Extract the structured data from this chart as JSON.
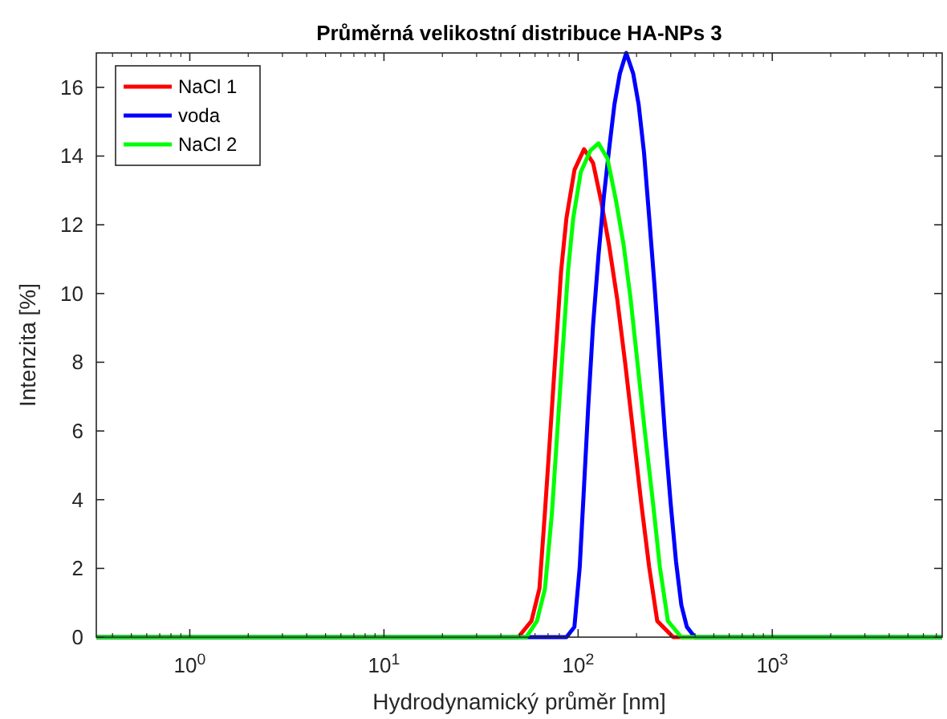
{
  "chart_data": {
    "type": "line",
    "title": "Průměrná velikostní distribuce HA-NPs 3",
    "xlabel": "Hydrodynamický průměr [nm]",
    "ylabel": "Intenzita [%]",
    "log": "x",
    "xlim": [
      0.33,
      7500
    ],
    "xticks": [
      {
        "value": 1,
        "label": "10$^{0}$"
      },
      {
        "value": 10,
        "label": "10$^{1}$"
      },
      {
        "value": 100,
        "label": "10$^{2}$"
      },
      {
        "value": 1000,
        "label": "10$^{3}$"
      }
    ],
    "ylim": [
      0,
      17
    ],
    "yticks": [
      0,
      2,
      4,
      6,
      8,
      10,
      12,
      14,
      16
    ],
    "grid": false,
    "legend": "top left",
    "marker": "none",
    "line_style": "solid",
    "series": [
      {
        "name": "NaCl 1",
        "color": "#ff0000",
        "x": [
          0.33,
          49.2,
          57.5,
          63.2,
          67.4,
          71.9,
          76.6,
          81.7,
          87.1,
          95.8,
          107.3,
          119.4,
          131.3,
          144.4,
          158.8,
          174.7,
          192.2,
          211.3,
          232.4,
          255.6,
          309,
          7500
        ],
        "values": [
          0,
          0,
          0.47,
          1.41,
          3.6,
          5.95,
          8.29,
          10.64,
          12.2,
          13.6,
          14.2,
          13.8,
          12.7,
          11.4,
          9.86,
          7.98,
          5.95,
          3.91,
          2.03,
          0.47,
          0,
          0
        ]
      },
      {
        "name": "voda",
        "color": "#0000ff",
        "x": [
          0.33,
          87.1,
          95.7,
          101.9,
          107.3,
          112.8,
          119.4,
          127.3,
          135.6,
          144.4,
          153.8,
          164,
          176.9,
          192.2,
          205,
          218.5,
          232.4,
          247.7,
          263.8,
          281,
          299.6,
          319.3,
          340,
          363,
          399,
          7500
        ],
        "values": [
          0,
          0,
          0.3,
          2.03,
          4.4,
          6.73,
          9.08,
          11.1,
          12.8,
          14.2,
          15.5,
          16.4,
          17,
          16.4,
          15.5,
          14.1,
          12.2,
          10.2,
          8,
          5.8,
          3.9,
          2.2,
          0.94,
          0.3,
          0,
          0
        ]
      },
      {
        "name": "NaCl 2",
        "color": "#00ff00",
        "x": [
          0.33,
          54.1,
          61.4,
          67.5,
          73.3,
          78.1,
          83.2,
          88.7,
          94.4,
          103.3,
          115.7,
          127.3,
          141.6,
          157,
          171.5,
          186.2,
          202.2,
          221,
          243,
          263.8,
          290,
          340,
          7500
        ],
        "values": [
          0,
          0,
          0.47,
          1.41,
          3.6,
          5.95,
          8.29,
          10.64,
          12.2,
          13.54,
          14.16,
          14.37,
          13.93,
          12.68,
          11.42,
          9.86,
          7.98,
          5.95,
          3.91,
          2.03,
          0.47,
          0,
          0
        ]
      }
    ]
  }
}
